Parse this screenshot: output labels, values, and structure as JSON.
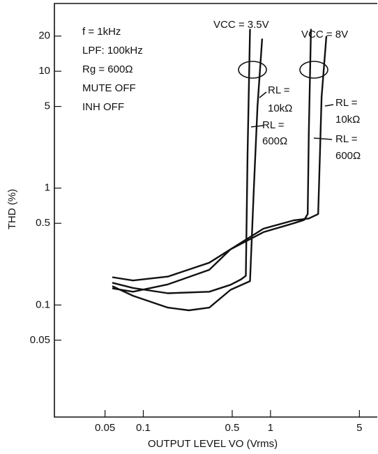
{
  "chart_data": {
    "type": "line",
    "xlabel": "OUTPUT LEVEL VO (Vrms)",
    "ylabel": "THD (%)",
    "annotations": [
      "f = 1kHz",
      "LPF: 100kHz",
      "Rg = 600Ω",
      "MUTE OFF",
      "INH OFF",
      "VCC = 3.5V",
      "VCC = 8V",
      "RL =",
      "10kΩ",
      "RL =",
      "600Ω",
      "RL =",
      "10kΩ",
      "RL =",
      "600Ω"
    ],
    "xlog": true,
    "ylog": true,
    "xlim": [
      0.02,
      7
    ],
    "ylim": [
      0.011,
      38
    ],
    "xticks": [
      0.05,
      0.1,
      0.5,
      1,
      5
    ],
    "yticks": [
      0.05,
      0.1,
      0.5,
      1,
      5,
      10,
      20
    ],
    "series": [
      {
        "color": "#111111",
        "x": [
          0.057,
          0.083,
          0.156,
          0.33,
          0.486,
          0.588,
          0.64,
          0.66,
          0.69
        ],
        "values": [
          0.155,
          0.14,
          0.126,
          0.13,
          0.149,
          0.166,
          0.178,
          2,
          23
        ]
      },
      {
        "color": "#111111",
        "x": [
          0.057,
          0.083,
          0.156,
          0.228,
          0.33,
          0.486,
          0.69,
          0.74,
          0.79,
          0.86
        ],
        "values": [
          0.145,
          0.12,
          0.095,
          0.09,
          0.095,
          0.135,
          0.16,
          1,
          5,
          19
        ]
      },
      {
        "color": "#111111",
        "x": [
          0.057,
          0.083,
          0.156,
          0.33,
          0.486,
          0.88,
          1.52,
          1.84,
          1.96,
          2.0,
          2.08
        ],
        "values": [
          0.173,
          0.162,
          0.175,
          0.23,
          0.3,
          0.42,
          0.5,
          0.535,
          0.6,
          3,
          23
        ]
      },
      {
        "color": "#111111",
        "x": [
          0.057,
          0.083,
          0.156,
          0.33,
          0.486,
          0.88,
          1.52,
          2.0,
          2.37,
          2.45,
          2.52,
          2.75
        ],
        "values": [
          0.139,
          0.13,
          0.15,
          0.2,
          0.3,
          0.45,
          0.53,
          0.55,
          0.6,
          2,
          6,
          20
        ]
      }
    ]
  }
}
